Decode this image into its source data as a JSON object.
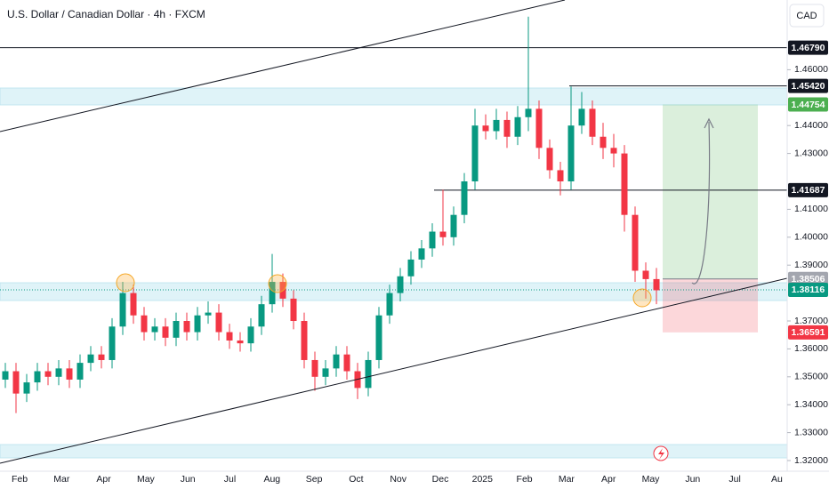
{
  "chart_data": {
    "type": "candlestick",
    "title": "U.S. Dollar / Canadian Dollar · 4h · FXCM",
    "currency": "CAD",
    "up_color": "#089981",
    "down_color": "#f23645",
    "x_labels": [
      "Feb",
      "Mar",
      "Apr",
      "May",
      "Jun",
      "Jul",
      "Aug",
      "Sep",
      "Oct",
      "Nov",
      "Dec",
      "2025",
      "Feb",
      "Mar",
      "Apr",
      "May",
      "Jun",
      "Jul",
      "Au"
    ],
    "open": [
      1.349,
      1.352,
      1.344,
      1.348,
      1.352,
      1.35,
      1.353,
      1.349,
      1.355,
      1.358,
      1.356,
      1.368,
      1.38,
      1.372,
      1.366,
      1.368,
      1.364,
      1.37,
      1.366,
      1.372,
      1.373,
      1.366,
      1.363,
      1.362,
      1.368,
      1.376,
      1.384,
      1.378,
      1.37,
      1.356,
      1.35,
      1.353,
      1.358,
      1.352,
      1.346,
      1.356,
      1.372,
      1.38,
      1.386,
      1.392,
      1.396,
      1.402,
      1.4,
      1.408,
      1.42,
      1.44,
      1.438,
      1.442,
      1.436,
      1.443,
      1.446,
      1.432,
      1.424,
      1.42,
      1.44,
      1.446,
      1.436,
      1.432,
      1.43,
      1.408,
      1.388,
      1.385
    ],
    "high": [
      1.355,
      1.355,
      1.351,
      1.355,
      1.355,
      1.356,
      1.356,
      1.358,
      1.361,
      1.361,
      1.371,
      1.384,
      1.383,
      1.375,
      1.371,
      1.371,
      1.373,
      1.373,
      1.375,
      1.377,
      1.376,
      1.369,
      1.366,
      1.371,
      1.379,
      1.394,
      1.387,
      1.381,
      1.373,
      1.359,
      1.356,
      1.361,
      1.361,
      1.355,
      1.359,
      1.375,
      1.383,
      1.389,
      1.395,
      1.399,
      1.405,
      1.417,
      1.411,
      1.423,
      1.446,
      1.444,
      1.446,
      1.445,
      1.447,
      1.479,
      1.449,
      1.435,
      1.427,
      1.454,
      1.452,
      1.449,
      1.441,
      1.437,
      1.433,
      1.411,
      1.391,
      1.389
    ],
    "low": [
      1.346,
      1.337,
      1.341,
      1.345,
      1.347,
      1.347,
      1.346,
      1.346,
      1.352,
      1.353,
      1.353,
      1.365,
      1.369,
      1.363,
      1.363,
      1.361,
      1.361,
      1.363,
      1.363,
      1.369,
      1.363,
      1.36,
      1.359,
      1.359,
      1.365,
      1.373,
      1.375,
      1.367,
      1.353,
      1.345,
      1.347,
      1.35,
      1.349,
      1.342,
      1.343,
      1.353,
      1.369,
      1.377,
      1.383,
      1.389,
      1.393,
      1.397,
      1.397,
      1.405,
      1.417,
      1.435,
      1.435,
      1.432,
      1.433,
      1.438,
      1.428,
      1.421,
      1.415,
      1.417,
      1.437,
      1.433,
      1.428,
      1.425,
      1.402,
      1.384,
      1.378,
      1.376
    ],
    "close": [
      1.352,
      1.344,
      1.348,
      1.352,
      1.35,
      1.353,
      1.349,
      1.355,
      1.358,
      1.356,
      1.368,
      1.38,
      1.372,
      1.366,
      1.368,
      1.364,
      1.37,
      1.366,
      1.372,
      1.373,
      1.366,
      1.363,
      1.362,
      1.368,
      1.376,
      1.384,
      1.378,
      1.37,
      1.356,
      1.35,
      1.353,
      1.358,
      1.352,
      1.346,
      1.356,
      1.372,
      1.38,
      1.386,
      1.392,
      1.396,
      1.402,
      1.4,
      1.408,
      1.42,
      1.44,
      1.438,
      1.442,
      1.436,
      1.443,
      1.446,
      1.432,
      1.424,
      1.42,
      1.44,
      1.446,
      1.436,
      1.432,
      1.43,
      1.408,
      1.388,
      1.385,
      1.381
    ],
    "ylim": [
      1.31618,
      1.48497
    ],
    "yticks": [
      {
        "value": 1.32,
        "label": "1.32000"
      },
      {
        "value": 1.33,
        "label": "1.33000"
      },
      {
        "value": 1.34,
        "label": "1.34000"
      },
      {
        "value": 1.35,
        "label": "1.35000"
      },
      {
        "value": 1.36,
        "label": "1.36000"
      },
      {
        "value": 1.37,
        "label": "1.37000"
      },
      {
        "value": 1.39,
        "label": "1.39000"
      },
      {
        "value": 1.4,
        "label": "1.40000"
      },
      {
        "value": 1.41,
        "label": "1.41000"
      },
      {
        "value": 1.43,
        "label": "1.43000"
      },
      {
        "value": 1.44,
        "label": "1.44000"
      },
      {
        "value": 1.46,
        "label": "1.46000"
      }
    ],
    "price_labels": [
      {
        "value": 1.4679,
        "label": "1.46790",
        "color": "#131722"
      },
      {
        "value": 1.4542,
        "label": "1.45420",
        "color": "#131722"
      },
      {
        "value": 1.44754,
        "label": "1.44754",
        "color": "#4caf50"
      },
      {
        "value": 1.41687,
        "label": "1.41687",
        "color": "#131722"
      },
      {
        "value": 1.38506,
        "label": "1.38506",
        "color": "#a3a6af"
      },
      {
        "value": 1.38116,
        "label": "1.38116",
        "color": "#089981"
      },
      {
        "value": 1.36591,
        "label": "1.36591",
        "color": "#f23645"
      }
    ]
  }
}
